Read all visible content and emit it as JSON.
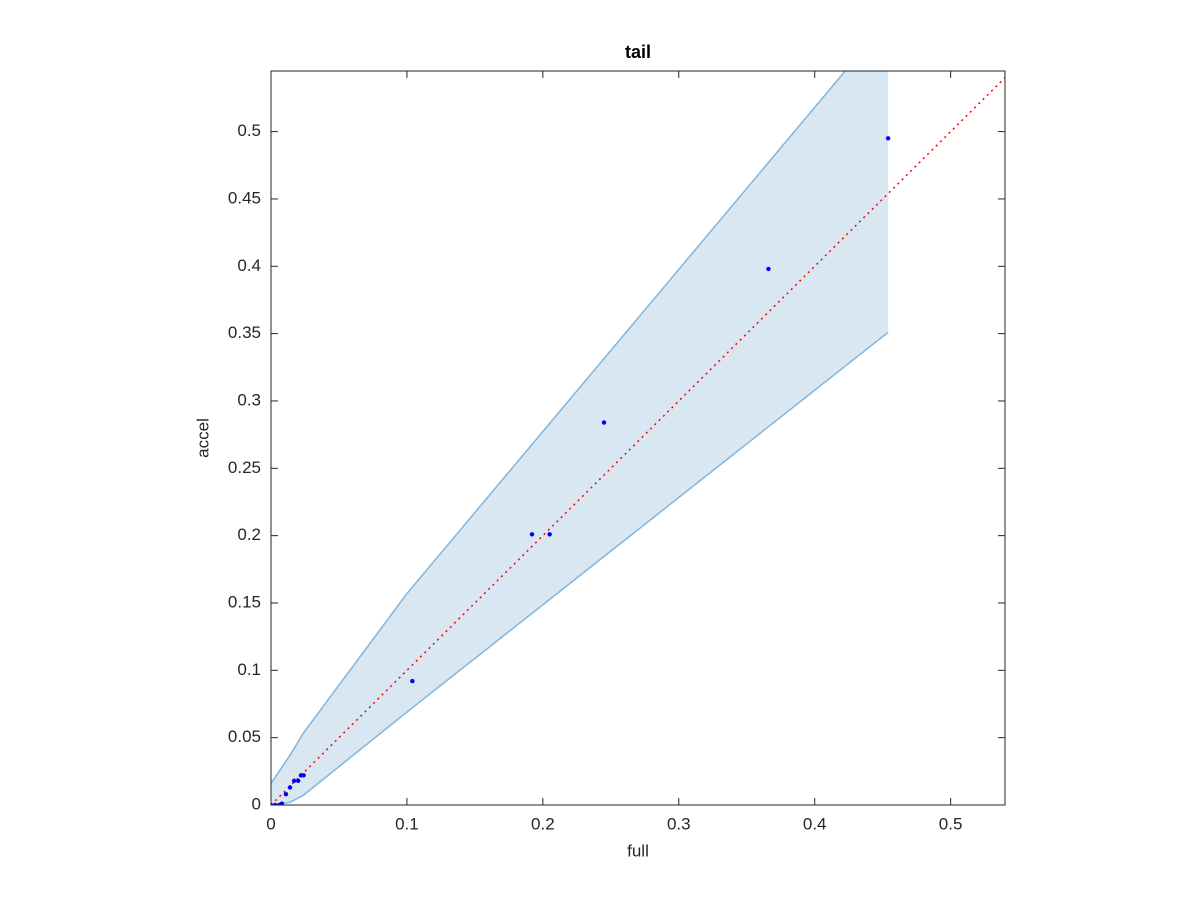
{
  "chart_data": {
    "type": "scatter",
    "title": "tail",
    "xlabel": "full",
    "ylabel": "accel",
    "xlim": [
      0,
      0.54
    ],
    "ylim": [
      0,
      0.545
    ],
    "xticks": [
      0,
      0.1,
      0.2,
      0.3,
      0.4,
      0.5
    ],
    "yticks": [
      0,
      0.05,
      0.1,
      0.15,
      0.2,
      0.25,
      0.3,
      0.35,
      0.4,
      0.45,
      0.5
    ],
    "grid": false,
    "points": {
      "color": "#0000ff",
      "x": [
        0,
        0.003,
        0.006,
        0.008,
        0.011,
        0.014,
        0.017,
        0.02,
        0.022,
        0.024,
        0.104,
        0.192,
        0.205,
        0.245,
        0.366,
        0.454
      ],
      "y": [
        0,
        0,
        0,
        0.001,
        0.008,
        0.013,
        0.018,
        0.018,
        0.022,
        0.022,
        0.092,
        0.201,
        0.201,
        0.284,
        0.398,
        0.495
      ]
    },
    "band": {
      "fill": "#d9e7f3",
      "edge": "#7fb6de",
      "x": [
        0,
        0.014,
        0.0235,
        0.1,
        0.454
      ],
      "upper": [
        0.016,
        0.037,
        0.053,
        0.157,
        0.583
      ],
      "lower": [
        0,
        0.002,
        0.007,
        0.069,
        0.351
      ]
    },
    "reference_line": {
      "color": "#ff0000",
      "x": [
        0,
        0.54
      ],
      "y": [
        0,
        0.54
      ]
    }
  }
}
